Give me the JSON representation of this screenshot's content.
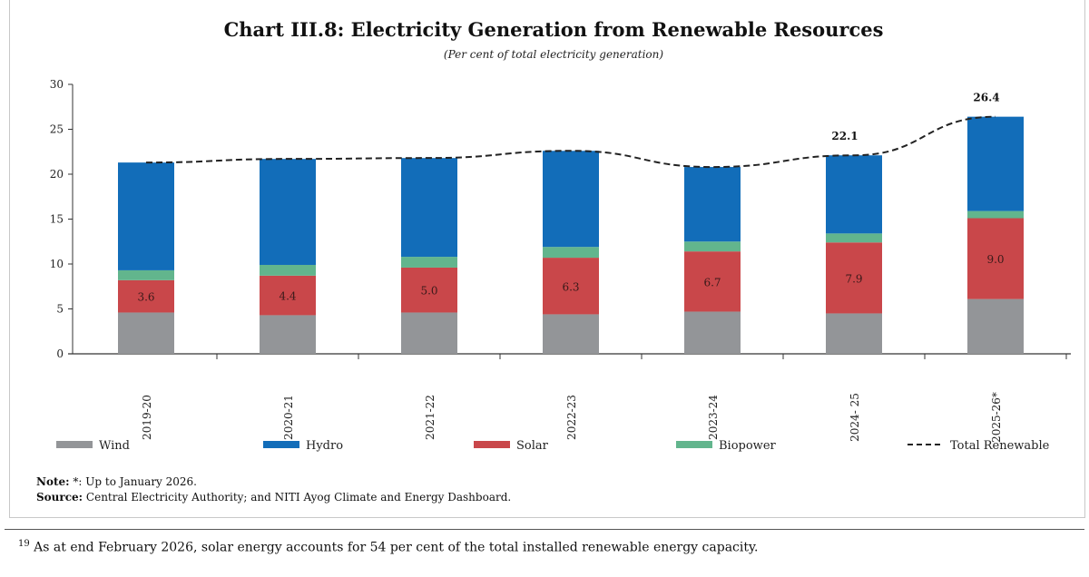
{
  "chart_data": {
    "type": "bar",
    "stacked": true,
    "title": "Chart III.8:  Electricity Generation from Renewable Resources",
    "subtitle": "(Per cent of total electricity generation)",
    "xlabel": "",
    "ylabel": "",
    "ylim": [
      0,
      30
    ],
    "yticks": [
      0,
      5,
      10,
      15,
      20,
      25,
      30
    ],
    "categories": [
      "2019-20",
      "2020-21",
      "2021-22",
      "2022-23",
      "2023-24",
      "2024- 25",
      "2025-26*"
    ],
    "series": [
      {
        "name": "Wind",
        "color": "#939598",
        "values": [
          4.6,
          4.3,
          4.6,
          4.4,
          4.7,
          4.5,
          6.1
        ]
      },
      {
        "name": "Solar",
        "color": "#c9474a",
        "values": [
          3.6,
          4.4,
          5.0,
          6.3,
          6.7,
          7.9,
          9.0
        ],
        "labels": [
          "3.6",
          "4.4",
          "5.0",
          "6.3",
          "6.7",
          "7.9",
          "9.0"
        ]
      },
      {
        "name": "Biopower",
        "color": "#62b58d",
        "values": [
          1.1,
          1.2,
          1.2,
          1.2,
          1.1,
          1.0,
          0.8
        ]
      },
      {
        "name": "Hydro",
        "color": "#126db9",
        "values": [
          12.0,
          11.8,
          11.0,
          10.7,
          8.3,
          8.7,
          10.5
        ]
      }
    ],
    "line": {
      "name": "Total Renewable",
      "values": [
        21.3,
        21.7,
        21.8,
        22.6,
        20.8,
        22.1,
        26.4
      ],
      "labels": [
        "",
        "",
        "",
        "",
        "",
        "22.1",
        "26.4"
      ]
    },
    "legend": [
      "Wind",
      "Hydro",
      "Solar",
      "Biopower",
      "Total Renewable"
    ],
    "legend_placement": "bottom",
    "grid": false
  },
  "note": {
    "label": "Note:",
    "text": " *: Up to January 2026."
  },
  "source": {
    "label": "Source:",
    "text": " Central Electricity Authority; and NITI Ayog Climate and Energy Dashboard."
  },
  "footnote": {
    "number": "19",
    "text": " As at end February 2026, solar energy accounts for 54 per cent of the total installed renewable energy capacity."
  }
}
